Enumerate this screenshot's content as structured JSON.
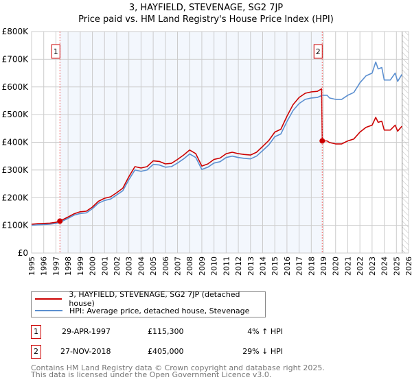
{
  "chart_data": {
    "type": "line",
    "title": "3, HAYFIELD, STEVENAGE, SG2 7JP",
    "subtitle": "Price paid vs. HM Land Registry's House Price Index (HPI)",
    "xlabel": "",
    "ylabel": "",
    "xlim": [
      1995,
      2026
    ],
    "ylim": [
      0,
      800000
    ],
    "x_ticks": [
      "1995",
      "1996",
      "1997",
      "1998",
      "1999",
      "2000",
      "2001",
      "2002",
      "2003",
      "2004",
      "2005",
      "2006",
      "2007",
      "2008",
      "2009",
      "2010",
      "2011",
      "2012",
      "2013",
      "2014",
      "2015",
      "2016",
      "2017",
      "2018",
      "2019",
      "2020",
      "2021",
      "2022",
      "2023",
      "2024",
      "2025",
      "2026"
    ],
    "y_ticks": [
      {
        "value": 0,
        "label": "£0"
      },
      {
        "value": 100000,
        "label": "£100K"
      },
      {
        "value": 200000,
        "label": "£200K"
      },
      {
        "value": 300000,
        "label": "£300K"
      },
      {
        "value": 400000,
        "label": "£400K"
      },
      {
        "value": 500000,
        "label": "£500K"
      },
      {
        "value": 600000,
        "label": "£600K"
      },
      {
        "value": 700000,
        "label": "£700K"
      },
      {
        "value": 800000,
        "label": "£800K"
      }
    ],
    "grid": true,
    "hatched_from": 2025.47,
    "series": [
      {
        "name": "3, HAYFIELD, STEVENAGE, SG2 7JP (detached house)",
        "color": "#cc0000",
        "x": [
          1995,
          1995.5,
          1996,
          1996.5,
          1997,
          1997.33,
          1998,
          1998.5,
          1999,
          1999.5,
          2000,
          2000.5,
          2001,
          2001.5,
          2002,
          2002.5,
          2003,
          2003.5,
          2004,
          2004.5,
          2005,
          2005.5,
          2006,
          2006.5,
          2007,
          2007.5,
          2008,
          2008.5,
          2009,
          2009.5,
          2010,
          2010.5,
          2011,
          2011.5,
          2012,
          2012.5,
          2013,
          2013.5,
          2014,
          2014.5,
          2015,
          2015.5,
          2016,
          2016.5,
          2017,
          2017.5,
          2018,
          2018.5,
          2018.85,
          2018.9,
          2019.3,
          2019.5,
          2020,
          2020.5,
          2021,
          2021.5,
          2022,
          2022.5,
          2023,
          2023.3,
          2023.5,
          2023.8,
          2024,
          2024.5,
          2024.9,
          2025.1,
          2025.45
        ],
        "y": [
          104000,
          106000,
          107000,
          108000,
          111000,
          115300,
          130000,
          142000,
          149000,
          151000,
          166000,
          187000,
          198000,
          203000,
          218000,
          234000,
          276000,
          312000,
          307000,
          312000,
          333000,
          331000,
          322000,
          324000,
          338000,
          354000,
          372000,
          359000,
          314000,
          322000,
          338000,
          343000,
          359000,
          364000,
          359000,
          356000,
          354000,
          364000,
          385000,
          406000,
          437000,
          447000,
          494000,
          536000,
          562000,
          577000,
          582000,
          584000,
          593000,
          405000,
          405000,
          399000,
          394000,
          394000,
          405000,
          412000,
          437000,
          454000,
          462000,
          490000,
          472000,
          476000,
          444000,
          444000,
          462000,
          440000,
          458000
        ]
      },
      {
        "name": "HPI: Average price, detached house, Stevenage",
        "color": "#5b8fd0",
        "x": [
          1995,
          1995.5,
          1996,
          1996.5,
          1997,
          1997.33,
          1998,
          1998.5,
          1999,
          1999.5,
          2000,
          2000.5,
          2001,
          2001.5,
          2002,
          2002.5,
          2003,
          2003.5,
          2004,
          2004.5,
          2005,
          2005.5,
          2006,
          2006.5,
          2007,
          2007.5,
          2008,
          2008.5,
          2009,
          2009.5,
          2010,
          2010.5,
          2011,
          2011.5,
          2012,
          2012.5,
          2013,
          2013.5,
          2014,
          2014.5,
          2015,
          2015.5,
          2016,
          2016.5,
          2017,
          2017.5,
          2018,
          2018.5,
          2018.9,
          2019.3,
          2019.5,
          2020,
          2020.5,
          2021,
          2021.5,
          2022,
          2022.5,
          2023,
          2023.3,
          2023.5,
          2023.8,
          2024,
          2024.5,
          2024.9,
          2025.1,
          2025.45
        ],
        "y": [
          100000,
          102000,
          103000,
          104000,
          107000,
          111000,
          125000,
          137000,
          143000,
          145000,
          160000,
          180000,
          190000,
          195000,
          210000,
          225000,
          265000,
          300000,
          295000,
          300000,
          320000,
          318000,
          310000,
          312000,
          325000,
          340000,
          358000,
          345000,
          302000,
          310000,
          325000,
          330000,
          345000,
          350000,
          345000,
          342000,
          340000,
          350000,
          370000,
          390000,
          420000,
          430000,
          475000,
          515000,
          540000,
          555000,
          560000,
          562000,
          570000,
          570000,
          560000,
          555000,
          555000,
          570000,
          580000,
          615000,
          640000,
          650000,
          690000,
          665000,
          670000,
          625000,
          625000,
          650000,
          620000,
          645000
        ]
      }
    ],
    "sales": [
      {
        "id": "1",
        "x": 1997.33,
        "y": 115300
      },
      {
        "id": "2",
        "x": 2018.9,
        "y": 405000
      }
    ]
  },
  "legend": {
    "property": "3, HAYFIELD, STEVENAGE, SG2 7JP (detached house)",
    "hpi": "HPI: Average price, detached house, Stevenage"
  },
  "transactions": [
    {
      "num": "1",
      "date": "29-APR-1997",
      "price": "£115,300",
      "hpi": "4% ↑ HPI"
    },
    {
      "num": "2",
      "date": "27-NOV-2018",
      "price": "£405,000",
      "hpi": "29% ↓ HPI"
    }
  ],
  "footer": {
    "line1": "Contains HM Land Registry data © Crown copyright and database right 2025.",
    "line2": "This data is licensed under the Open Government Licence v3.0."
  }
}
